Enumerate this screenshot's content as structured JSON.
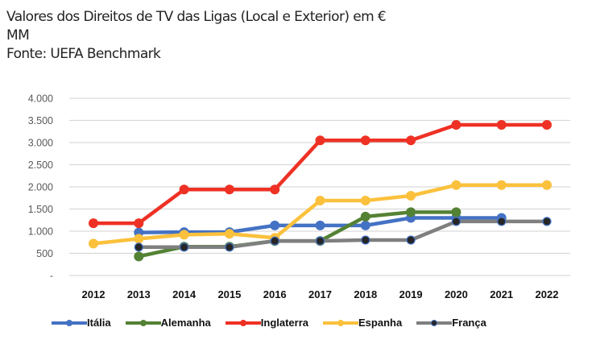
{
  "chart_data": {
    "type": "line",
    "title": "Valores dos Direitos de TV das Ligas (Local e Exterior) em € MM",
    "title_lines": [
      "Valores dos Direitos de TV das Ligas (Local e Exterior) em €",
      "MM"
    ],
    "subtitle": "Fonte: UEFA Benchmark",
    "xlabel": "",
    "ylabel": "",
    "ylim": [
      0,
      4000
    ],
    "y_ticks": [
      0,
      500,
      1000,
      1500,
      2000,
      2500,
      3000,
      3500,
      4000
    ],
    "y_tick_labels": [
      "-",
      "500",
      "1.000",
      "1.500",
      "2.000",
      "2.500",
      "3.000",
      "3.500",
      "4.000"
    ],
    "categories": [
      "2012",
      "2013",
      "2014",
      "2015",
      "2016",
      "2017",
      "2018",
      "2019",
      "2020",
      "2021",
      "2022"
    ],
    "grid": true,
    "legend_position": "bottom",
    "series": [
      {
        "name": "Itália",
        "color": "#4472c4",
        "marker_fill": "#4472c4",
        "values": [
          null,
          970,
          980,
          980,
          1130,
          1130,
          1130,
          1300,
          1300,
          1300,
          null
        ]
      },
      {
        "name": "Alemanha",
        "color": "#548235",
        "marker_fill": "#548235",
        "values": [
          null,
          430,
          650,
          650,
          780,
          780,
          1330,
          1430,
          1430,
          null,
          null
        ]
      },
      {
        "name": "Inglaterra",
        "color": "#ee3124",
        "marker_fill": "#ee3124",
        "values": [
          1180,
          1180,
          1940,
          1940,
          1940,
          3050,
          3050,
          3050,
          3400,
          3400,
          3400
        ]
      },
      {
        "name": "Espanha",
        "color": "#fbc13c",
        "marker_fill": "#fbc13c",
        "values": [
          720,
          830,
          920,
          940,
          850,
          1690,
          1690,
          1800,
          2040,
          2040,
          2040
        ]
      },
      {
        "name": "França",
        "color": "#7f7f7f",
        "marker_fill": "#262626",
        "values": [
          null,
          640,
          640,
          640,
          780,
          780,
          800,
          800,
          1220,
          1220,
          1220
        ]
      }
    ]
  }
}
